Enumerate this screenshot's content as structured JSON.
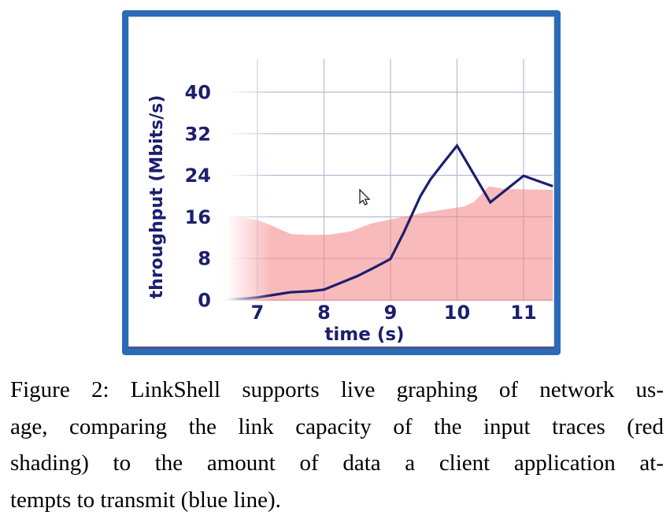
{
  "window": {
    "border_color": "#2b6ab8"
  },
  "chart_data": {
    "type": "area+line",
    "title": "",
    "xlabel": "time (s)",
    "ylabel": "throughput (Mbits/s)",
    "xlim": [
      6.36,
      11.44
    ],
    "ylim": [
      0,
      46.4
    ],
    "xticks": [
      7,
      8,
      9,
      10,
      11
    ],
    "yticks": [
      0,
      8,
      16,
      24,
      32,
      40
    ],
    "grid": "on",
    "legend": "none",
    "left_edge_fade": true,
    "series": [
      {
        "name": "link capacity of input traces (red shading)",
        "type": "area",
        "color": "#f9babb",
        "points": [
          [
            6.36,
            16.4
          ],
          [
            6.7,
            16.0
          ],
          [
            7.0,
            15.4
          ],
          [
            7.2,
            14.4
          ],
          [
            7.5,
            12.7
          ],
          [
            7.8,
            12.5
          ],
          [
            8.1,
            12.6
          ],
          [
            8.4,
            13.2
          ],
          [
            8.7,
            14.7
          ],
          [
            9.0,
            15.5
          ],
          [
            9.5,
            16.8
          ],
          [
            9.9,
            17.6
          ],
          [
            10.1,
            18.0
          ],
          [
            10.25,
            18.8
          ],
          [
            10.48,
            21.9
          ],
          [
            10.7,
            21.4
          ],
          [
            11.0,
            21.3
          ],
          [
            11.44,
            21.2
          ]
        ]
      },
      {
        "name": "data a client application attempts to transmit (blue line)",
        "type": "line",
        "color": "#1c1e6e",
        "points": [
          [
            6.5,
            0.1
          ],
          [
            6.85,
            0.3
          ],
          [
            7.0,
            0.5
          ],
          [
            7.3,
            1.1
          ],
          [
            7.5,
            1.5
          ],
          [
            7.8,
            1.7
          ],
          [
            8.0,
            2.0
          ],
          [
            8.25,
            3.3
          ],
          [
            8.5,
            4.6
          ],
          [
            8.75,
            6.2
          ],
          [
            9.0,
            7.9
          ],
          [
            9.2,
            13.0
          ],
          [
            9.45,
            20.0
          ],
          [
            9.6,
            23.2
          ],
          [
            9.8,
            26.5
          ],
          [
            10.0,
            29.7
          ],
          [
            10.5,
            18.8
          ],
          [
            11.0,
            23.9
          ],
          [
            11.44,
            21.9
          ]
        ]
      }
    ]
  },
  "cursor": {
    "icon": "arrow-pointer"
  },
  "caption": {
    "lines": [
      "Figure 2: LinkShell supports live graphing of network us-",
      "age, comparing the link capacity of the input traces (red",
      "shading) to the amount of data a client application at-",
      "tempts to transmit (blue line)."
    ]
  },
  "colors": {
    "axis_text": "#1c1e6e",
    "gridline": "#b6bad2",
    "window_border": "#2b6ab8",
    "area_fill": "#f9babb",
    "line": "#1c1e6e"
  }
}
